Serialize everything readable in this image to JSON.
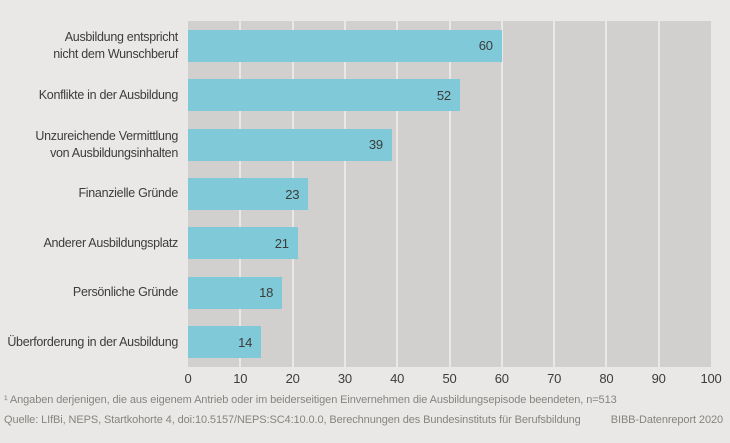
{
  "chart_data": {
    "type": "bar",
    "orientation": "horizontal",
    "title": "",
    "categories": [
      [
        "Ausbildung entspricht",
        "nicht dem Wunschberuf"
      ],
      [
        "Konflikte in der Ausbildung"
      ],
      [
        "Unzureichende Vermittlung",
        "von Ausbildungsinhalten"
      ],
      [
        "Finanzielle Gründe"
      ],
      [
        "Anderer Ausbildungsplatz"
      ],
      [
        "Persönliche Gründe"
      ],
      [
        "Überforderung in der Ausbildung"
      ]
    ],
    "values": [
      60,
      52,
      39,
      23,
      21,
      18,
      14
    ],
    "xlabel": "",
    "ylabel": "",
    "xlim": [
      0,
      100
    ],
    "xticks": [
      0,
      10,
      20,
      30,
      40,
      50,
      60,
      70,
      80,
      90,
      100
    ],
    "grid": true,
    "legend": "none",
    "value_label_position": "inside-end",
    "bar_color": "#7fc9d8",
    "plot_background": "#d1d0cf",
    "page_background": "#e9e8e6",
    "gridline_color": "#e9e8e6",
    "text_color": "#3c3c3b",
    "footer_text_color": "#86847f"
  },
  "footer": {
    "footnote": "¹ Angaben derjenigen, die aus eigenem Antrieb oder im beiderseitigen Einvernehmen die Ausbildungsepisode beendeten, n=513",
    "source": "Quelle: LIfBi, NEPS, Startkohorte 4, doi:10.5157/NEPS:SC4:10.0.0, Berechnungen des Bundesinstituts für Berufsbildung",
    "report": "BIBB-Datenreport 2020"
  }
}
